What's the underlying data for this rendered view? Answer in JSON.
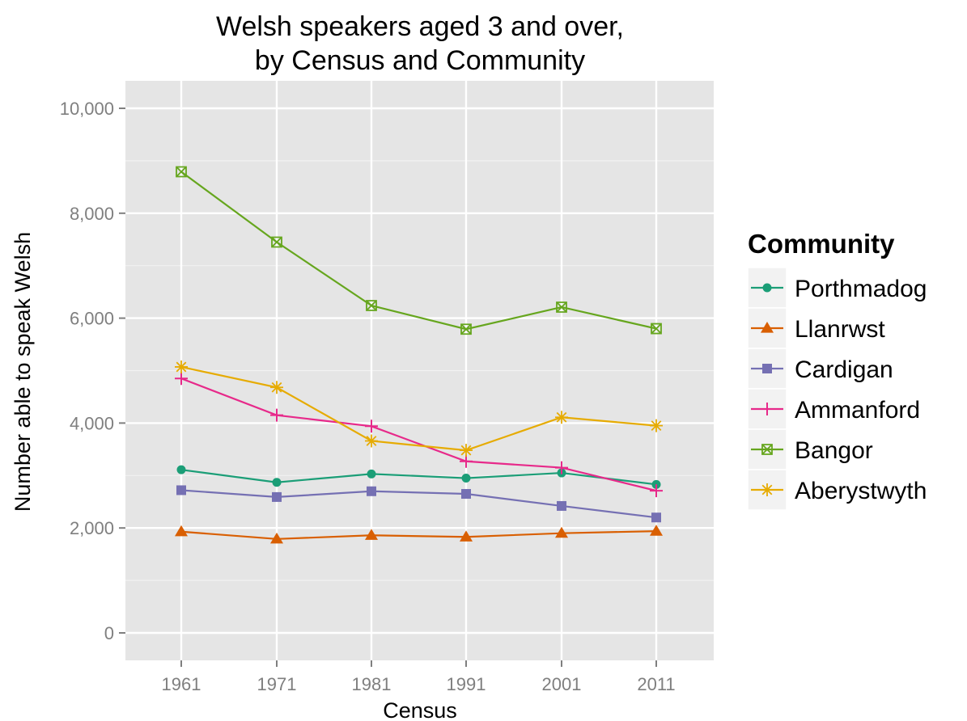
{
  "chart_data": {
    "type": "line",
    "title_lines": [
      "Welsh speakers aged 3 and over,",
      "by Census and Community"
    ],
    "xlabel": "Census",
    "ylabel": "Number able to speak Welsh",
    "x": [
      1961,
      1971,
      1981,
      1991,
      2001,
      2011
    ],
    "x_tick_labels": [
      "1961",
      "1971",
      "1981",
      "1991",
      "2001",
      "2011"
    ],
    "ylim": [
      0,
      10000
    ],
    "y_ticks": [
      0,
      2000,
      4000,
      6000,
      8000,
      10000
    ],
    "y_tick_labels": [
      "0",
      "2,000",
      "4,000",
      "6,000",
      "8,000",
      "10,000"
    ],
    "grid": true,
    "legend": {
      "title": "Community",
      "position": "right"
    },
    "series": [
      {
        "name": "Porthmadog",
        "color": "#1b9e77",
        "marker": "circle",
        "values": [
          3110,
          2870,
          3030,
          2950,
          3050,
          2830
        ]
      },
      {
        "name": "Llanrwst",
        "color": "#d95f02",
        "marker": "triangle",
        "values": [
          1930,
          1790,
          1860,
          1830,
          1900,
          1940
        ]
      },
      {
        "name": "Cardigan",
        "color": "#7570b3",
        "marker": "square",
        "values": [
          2720,
          2590,
          2700,
          2650,
          2420,
          2200
        ]
      },
      {
        "name": "Ammanford",
        "color": "#e7298a",
        "marker": "plus",
        "values": [
          4850,
          4150,
          3940,
          3270,
          3150,
          2710
        ]
      },
      {
        "name": "Bangor",
        "color": "#66a61e",
        "marker": "boxcross",
        "values": [
          8790,
          7450,
          6240,
          5790,
          6210,
          5800
        ]
      },
      {
        "name": "Aberystwyth",
        "color": "#e6ab02",
        "marker": "asterisk",
        "values": [
          5070,
          4680,
          3660,
          3480,
          4110,
          3950
        ]
      }
    ]
  }
}
